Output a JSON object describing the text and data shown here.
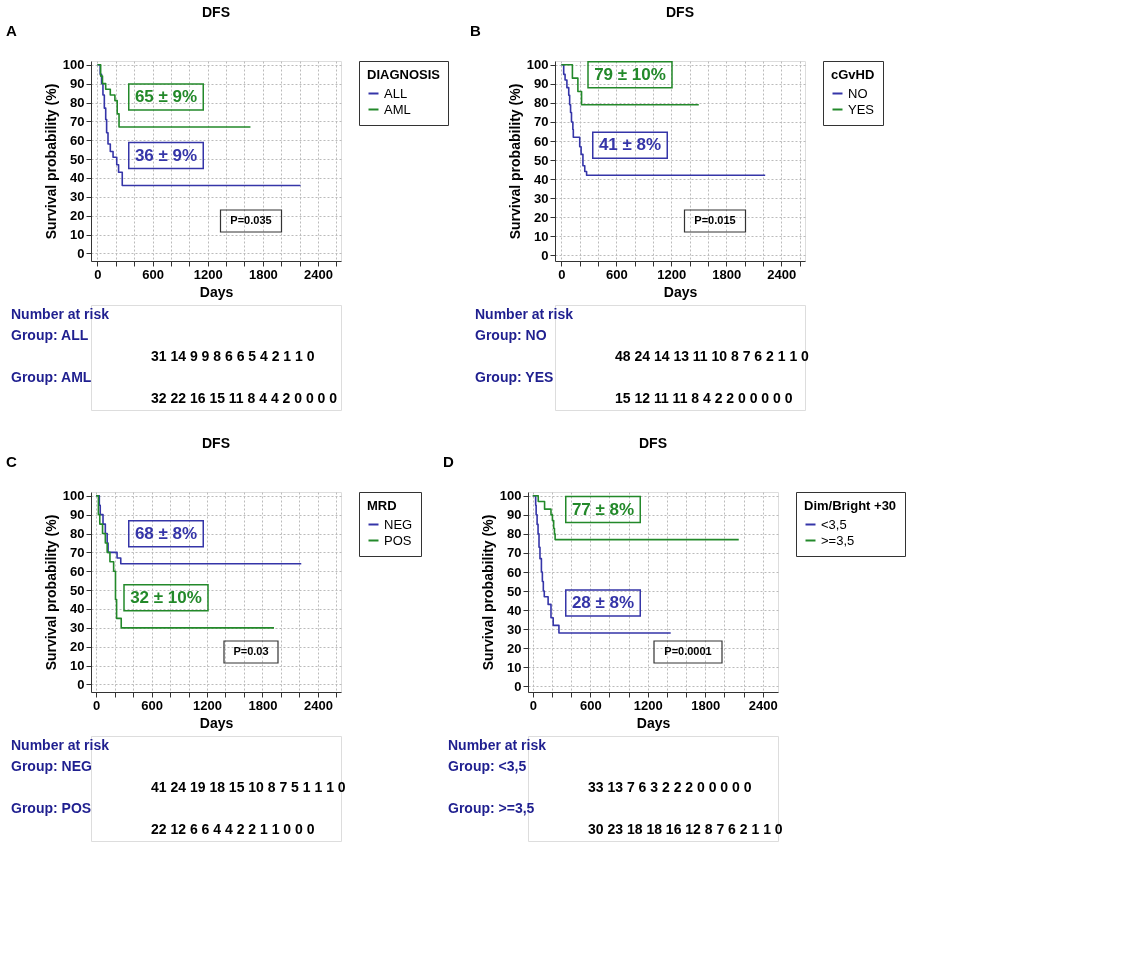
{
  "chart_data": [
    {
      "type": "step",
      "title": "DFS",
      "xlabel": "Days",
      "ylabel": "Survival probability (%)",
      "legend_title": "DIAGNOSIS",
      "legend": "right",
      "grid": true,
      "xlim": [
        -70,
        2650
      ],
      "ylim": [
        -4,
        102
      ],
      "xticks": [
        0,
        {
          "value": 200,
          "label": null
        },
        {
          "value": 400,
          "label": null
        },
        600,
        {
          "value": 800,
          "label": null
        },
        {
          "value": 1000,
          "label": null
        },
        1200,
        {
          "value": 1400,
          "label": null
        },
        {
          "value": 1600,
          "label": null
        },
        1800,
        {
          "value": 2000,
          "label": null
        },
        {
          "value": 2200,
          "label": null
        },
        2400,
        {
          "value": 2600,
          "label": null
        }
      ],
      "yticks": [
        0,
        10,
        20,
        30,
        40,
        50,
        60,
        70,
        80,
        90,
        100
      ],
      "series": [
        {
          "name": "ALL",
          "color": "#3535a8",
          "x": [
            0,
            30,
            45,
            60,
            75,
            90,
            100,
            115,
            140,
            170,
            210,
            230,
            270,
            2210
          ],
          "values": [
            100,
            95,
            90,
            84,
            77,
            71,
            64,
            58,
            54,
            51,
            47,
            43,
            36,
            36
          ]
        },
        {
          "name": "AML",
          "color": "#23892a",
          "x": [
            0,
            35,
            55,
            90,
            140,
            190,
            215,
            235,
            1665
          ],
          "values": [
            100,
            94,
            90,
            87,
            84,
            81,
            74,
            67,
            67
          ]
        }
      ],
      "annotations": [
        "A",
        "P=0.035",
        "65 ± 9%",
        "36 ± 9%",
        "Number at risk",
        "Group: ALL",
        "31 14 9 9 8 6 6 5 4 2 1 1 0",
        "Group: AML",
        "32 22 16 15 11 8 4 4 2 0 0 0 0"
      ]
    },
    {
      "type": "step",
      "title": "DFS",
      "xlabel": "Days",
      "ylabel": "Survival probability (%)",
      "legend_title": "cGvHD",
      "legend": "right",
      "grid": true,
      "xlim": [
        -70,
        2660
      ],
      "ylim": [
        -3,
        102
      ],
      "xticks": [
        0,
        {
          "value": 200,
          "label": null
        },
        {
          "value": 400,
          "label": null
        },
        600,
        {
          "value": 800,
          "label": null
        },
        {
          "value": 1000,
          "label": null
        },
        1200,
        {
          "value": 1400,
          "label": null
        },
        {
          "value": 1600,
          "label": null
        },
        1800,
        {
          "value": 2000,
          "label": null
        },
        {
          "value": 2200,
          "label": null
        },
        2400,
        {
          "value": 2600,
          "label": null
        }
      ],
      "yticks": [
        0,
        10,
        20,
        30,
        40,
        50,
        60,
        70,
        80,
        90,
        100
      ],
      "series": [
        {
          "name": "NO",
          "color": "#3535a8",
          "x": [
            0,
            25,
            40,
            60,
            80,
            90,
            100,
            110,
            125,
            130,
            200,
            215,
            235,
            255,
            275,
            2225
          ],
          "values": [
            100,
            95,
            92,
            88,
            84,
            79,
            75,
            70,
            66,
            62,
            57,
            53,
            47,
            44,
            42,
            42
          ]
        },
        {
          "name": "YES",
          "color": "#23892a",
          "x": [
            0,
            120,
            180,
            220,
            1500
          ],
          "values": [
            100,
            93,
            86,
            79,
            79
          ]
        }
      ],
      "annotations": [
        "B",
        "P=0.015",
        "79 ± 10%",
        "41 ± 8%",
        "Number at risk",
        "Group: NO",
        "48 24 14 13 11 10 8 7 6 2 1 1 0",
        "Group: YES",
        "15 12 11 11 8 4 2 2 0 0 0 0 0"
      ]
    },
    {
      "type": "step",
      "title": "DFS",
      "xlabel": "Days",
      "ylabel": "Survival probability (%)",
      "legend_title": "MRD",
      "legend": "right",
      "grid": true,
      "xlim": [
        -55,
        2650
      ],
      "ylim": [
        -4,
        102
      ],
      "xticks": [
        0,
        {
          "value": 200,
          "label": null
        },
        {
          "value": 400,
          "label": null
        },
        600,
        {
          "value": 800,
          "label": null
        },
        {
          "value": 1000,
          "label": null
        },
        1200,
        {
          "value": 1400,
          "label": null
        },
        {
          "value": 1600,
          "label": null
        },
        1800,
        {
          "value": 2000,
          "label": null
        },
        {
          "value": 2200,
          "label": null
        },
        2400,
        {
          "value": 2600,
          "label": null
        }
      ],
      "yticks": [
        0,
        10,
        20,
        30,
        40,
        50,
        60,
        70,
        80,
        90,
        100
      ],
      "series": [
        {
          "name": "NEG",
          "color": "#3535a8",
          "x": [
            0,
            35,
            45,
            75,
            100,
            120,
            130,
            140,
            227,
            267,
            2220
          ],
          "values": [
            100,
            95,
            90,
            85,
            80,
            75,
            70,
            70,
            67,
            64,
            64
          ]
        },
        {
          "name": "POS",
          "color": "#23892a",
          "x": [
            0,
            25,
            40,
            70,
            100,
            120,
            150,
            190,
            210,
            222,
            242,
            272,
            1925
          ],
          "values": [
            100,
            90,
            85,
            80,
            75,
            70,
            65,
            60,
            45,
            35,
            35,
            30,
            30
          ]
        }
      ],
      "annotations": [
        "C",
        "P=0.03",
        "68 ± 8%",
        "32 ± 10%",
        "Number at risk",
        "Group: NEG",
        "41 24 19 18 15 10 8 7 5 1 1 1 0",
        "Group: POS",
        "22 12 6 6 4 4 2 2 1 1 0 0 0"
      ]
    },
    {
      "type": "step",
      "title": "DFS",
      "xlabel": "Days",
      "ylabel": "Survival probability (%)",
      "legend_title": "Dim/Bright +30",
      "legend": "right",
      "grid": true,
      "xlim": [
        -50,
        2560
      ],
      "ylim": [
        -3,
        102
      ],
      "xticks": [
        0,
        {
          "value": 200,
          "label": null
        },
        {
          "value": 400,
          "label": null
        },
        600,
        {
          "value": 800,
          "label": null
        },
        {
          "value": 1000,
          "label": null
        },
        1200,
        {
          "value": 1400,
          "label": null
        },
        {
          "value": 1600,
          "label": null
        },
        1800,
        {
          "value": 2000,
          "label": null
        },
        {
          "value": 2200,
          "label": null
        },
        2400
      ],
      "yticks": [
        0,
        10,
        20,
        30,
        40,
        50,
        60,
        70,
        80,
        90,
        100
      ],
      "series": [
        {
          "name": "<3,5",
          "color": "#3535a8",
          "x": [
            0,
            30,
            35,
            45,
            55,
            65,
            75,
            90,
            100,
            110,
            120,
            160,
            190,
            213,
            250,
            273,
            1440
          ],
          "values": [
            100,
            95,
            90,
            85,
            80,
            73,
            67,
            60,
            55,
            50,
            47,
            43,
            36,
            32,
            32,
            28,
            28
          ]
        },
        {
          "name": ">=3,5",
          "color": "#23892a",
          "x": [
            0,
            57,
            123,
            190,
            205,
            218,
            226,
            233,
            2150
          ],
          "values": [
            100,
            97,
            93,
            90,
            87,
            83,
            80,
            77,
            77
          ]
        }
      ],
      "annotations": [
        "D",
        "P=0.0001",
        "77 ± 8%",
        "28 ± 8%",
        "Number at risk",
        "Group: <3,5",
        "33 13 7 6 3 2 2 2 0 0 0 0 0",
        "Group: >=3,5",
        "30 23 18 18 16 12 8 7 6 2 1 1 0"
      ]
    }
  ]
}
